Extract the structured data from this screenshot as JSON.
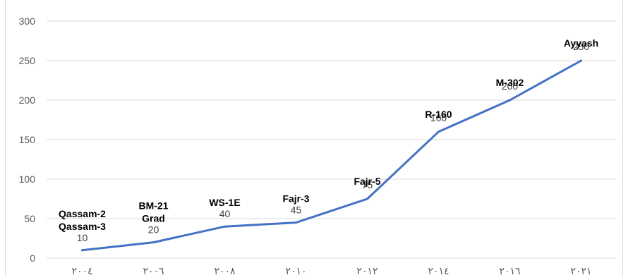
{
  "chart_data": {
    "type": "line",
    "categories": [
      "٢٠٠٤",
      "٢٠٠٦",
      "٢٠٠٨",
      "٢٠١٠",
      "٢٠١٢",
      "٢٠١٤",
      "٢٠١٦",
      "٢٠٢١"
    ],
    "values": [
      10,
      20,
      40,
      45,
      75,
      160,
      200,
      250
    ],
    "point_names": [
      [
        "Qassam-2",
        "Qassam-3"
      ],
      [
        "BM-21",
        "Grad"
      ],
      [
        "WS-1E"
      ],
      [
        "Fajr-3"
      ],
      [
        "Fajr-5"
      ],
      [
        "R-160"
      ],
      [
        "M-302"
      ],
      [
        "Ayyash"
      ]
    ],
    "yticks": [
      "0",
      "50",
      "100",
      "150",
      "200",
      "250",
      "300"
    ],
    "ylim": [
      0,
      300
    ],
    "grid": true,
    "legend": "none",
    "line_color": "#4472C4",
    "gridline_color": "#d9d9d9",
    "title": "",
    "xlabel": "",
    "ylabel": ""
  }
}
